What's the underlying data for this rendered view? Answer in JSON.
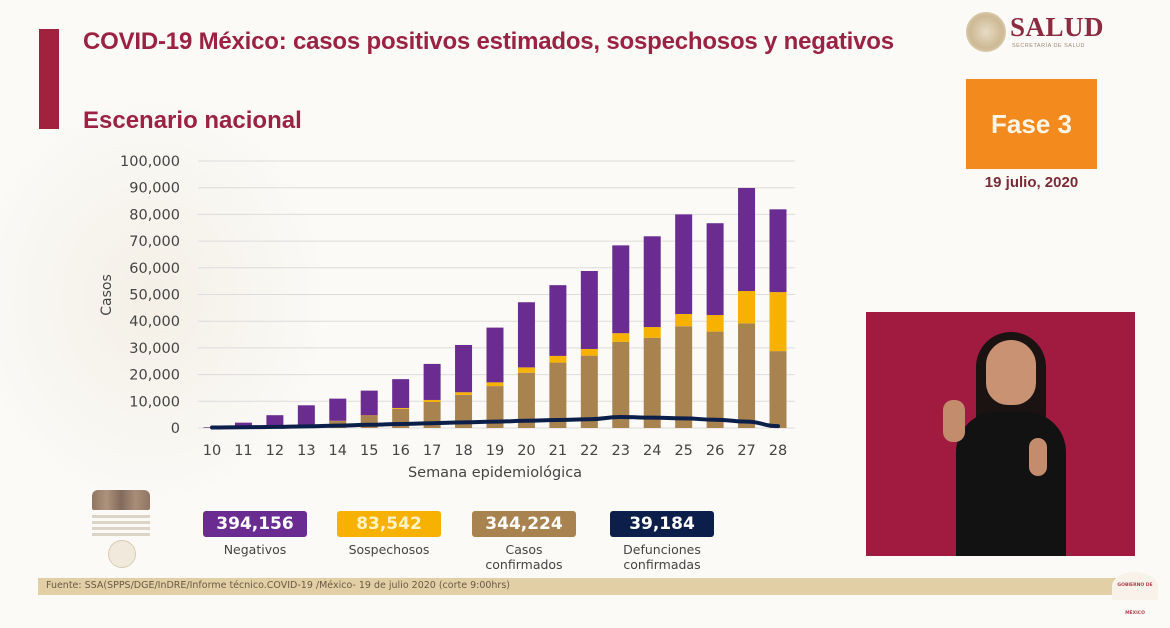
{
  "header": {
    "title": "COVID-19 México: casos positivos estimados, sospechosos y negativos",
    "subtitle": "Escenario nacional"
  },
  "logo": {
    "brand": "SALUD",
    "brand_sub": "SECRETARÍA DE SALUD"
  },
  "phase": {
    "label": "Fase 3",
    "date": "19 julio, 2020"
  },
  "colors": {
    "negativos": "#6a2c91",
    "sospechosos": "#f7b100",
    "confirmados": "#a8834f",
    "defunciones": "#0c1f4a",
    "title": "#9b2243",
    "phase": "#f28a1e"
  },
  "chart_data": {
    "type": "bar",
    "stacked": true,
    "title": "",
    "xlabel": "Semana epidemiológica",
    "ylabel": "Casos",
    "ylim": [
      0,
      100000
    ],
    "yticks": [
      0,
      10000,
      20000,
      30000,
      40000,
      50000,
      60000,
      70000,
      80000,
      90000,
      100000
    ],
    "ytick_labels": [
      "0",
      "10,000",
      "20,000",
      "30,000",
      "40,000",
      "50,000",
      "60,000",
      "70,000",
      "80,000",
      "90,000",
      "100,000"
    ],
    "grid": true,
    "categories": [
      "10",
      "11",
      "12",
      "13",
      "14",
      "15",
      "16",
      "17",
      "18",
      "19",
      "20",
      "21",
      "22",
      "23",
      "24",
      "25",
      "26",
      "27",
      "28"
    ],
    "series": [
      {
        "name": "Casos confirmados",
        "kind": "bar",
        "color_key": "confirmados",
        "values": [
          100,
          200,
          500,
          900,
          2600,
          4500,
          7200,
          9800,
          12400,
          15700,
          20700,
          24500,
          27100,
          32300,
          33800,
          38100,
          36100,
          39200,
          28800
        ]
      },
      {
        "name": "Sospechosos",
        "kind": "bar",
        "color_key": "sospechosos",
        "values": [
          0,
          0,
          100,
          100,
          100,
          200,
          300,
          700,
          1000,
          1400,
          2000,
          2500,
          2500,
          3200,
          4000,
          4600,
          6200,
          12100,
          22100
        ]
      },
      {
        "name": "Negativos",
        "kind": "bar",
        "color_key": "negativos",
        "values": [
          200,
          1800,
          4200,
          7500,
          8300,
          9300,
          10800,
          13500,
          17700,
          20500,
          24400,
          26500,
          29200,
          32900,
          34000,
          37300,
          34400,
          38600,
          31000
        ]
      },
      {
        "name": "Defunciones confirmadas",
        "kind": "line",
        "color_key": "defunciones",
        "values": [
          200,
          300,
          400,
          600,
          900,
          1200,
          1500,
          1800,
          2100,
          2400,
          2700,
          3000,
          3300,
          4100,
          3900,
          3600,
          3100,
          2400,
          700
        ]
      }
    ]
  },
  "legend": [
    {
      "value": "394,156",
      "label": "Negativos",
      "color_key": "negativos",
      "text_color": "#ffffff"
    },
    {
      "value": "83,542",
      "label": "Sospechosos",
      "color_key": "sospechosos",
      "text_color": "#fff3c4"
    },
    {
      "value": "344,224",
      "label": "Casos confirmados",
      "color_key": "confirmados",
      "text_color": "#ffffff"
    },
    {
      "value": "39,184",
      "label": "Defunciones confirmadas",
      "color_key": "defunciones",
      "text_color": "#ffffff"
    }
  ],
  "footer": {
    "source": "Fuente: SSA(SPPS/DGE/InDRE/Informe técnico.COVID-19 /México- 19 de julio 2020 (corte 9:00hrs)",
    "badge": "GOBIERNO DE MÉXICO"
  }
}
